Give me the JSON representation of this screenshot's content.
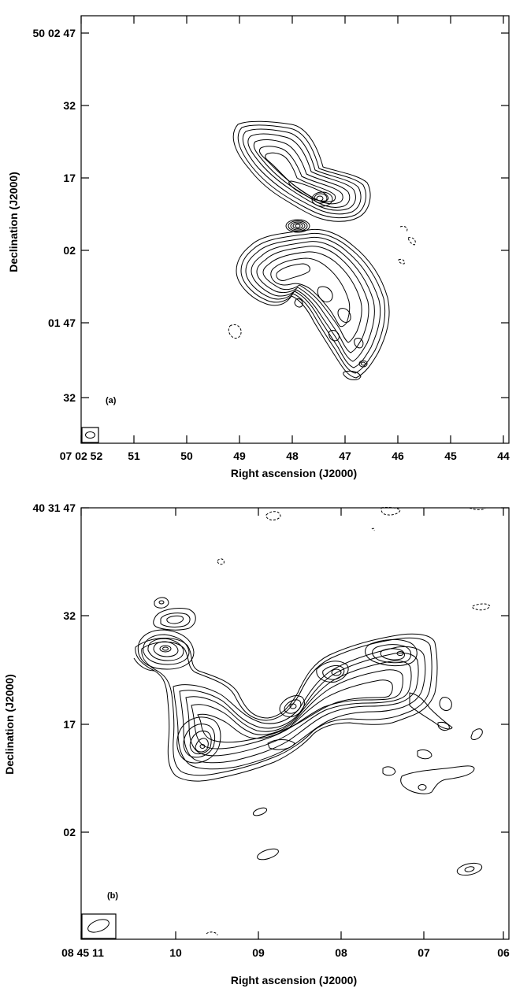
{
  "panel_a": {
    "label": "(a)",
    "x_ticks": [
      "07 02 52",
      "51",
      "50",
      "49",
      "48",
      "47",
      "46",
      "45",
      "44"
    ],
    "y_ticks": [
      "50 02 47",
      "32",
      "17",
      "02",
      "01 47",
      "32"
    ],
    "xlabel": "Right ascension (J2000)",
    "ylabel": "Declination (J2000)"
  },
  "panel_b": {
    "label": "(b)",
    "x_ticks": [
      "08 45 11",
      "10",
      "09",
      "08",
      "07",
      "06"
    ],
    "y_ticks": [
      "40 31 47",
      "32",
      "17",
      "02"
    ],
    "xlabel": "Right ascension (J2000)",
    "ylabel": "Declination (J2000)"
  }
}
